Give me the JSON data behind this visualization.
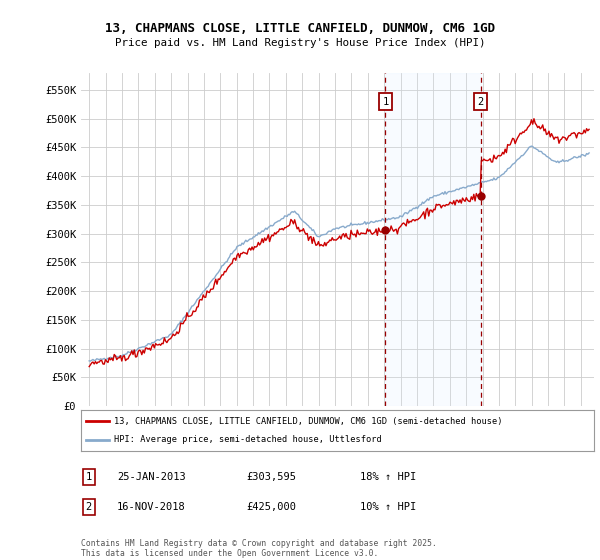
{
  "title1": "13, CHAPMANS CLOSE, LITTLE CANFIELD, DUNMOW, CM6 1GD",
  "title2": "Price paid vs. HM Land Registry's House Price Index (HPI)",
  "xlim_start": 1994.5,
  "xlim_end": 2025.8,
  "ylim_min": 0,
  "ylim_max": 580000,
  "purchase1_date": 2013.07,
  "purchase1_price": 303595,
  "purchase1_label": "1",
  "purchase2_date": 2018.88,
  "purchase2_price": 425000,
  "purchase2_label": "2",
  "legend_line1": "13, CHAPMANS CLOSE, LITTLE CANFIELD, DUNMOW, CM6 1GD (semi-detached house)",
  "legend_line2": "HPI: Average price, semi-detached house, Uttlesford",
  "footer": "Contains HM Land Registry data © Crown copyright and database right 2025.\nThis data is licensed under the Open Government Licence v3.0.",
  "line_color_red": "#cc0000",
  "line_color_blue": "#88aacc",
  "shade_color": "#ddeeff",
  "grid_color": "#cccccc",
  "background_color": "#ffffff",
  "purchase_marker_color": "#990000",
  "yticks": [
    0,
    50000,
    100000,
    150000,
    200000,
    250000,
    300000,
    350000,
    400000,
    450000,
    500000,
    550000
  ],
  "ytick_labels": [
    "£0",
    "£50K",
    "£100K",
    "£150K",
    "£200K",
    "£250K",
    "£300K",
    "£350K",
    "£400K",
    "£450K",
    "£500K",
    "£550K"
  ],
  "xticks": [
    1995,
    1996,
    1997,
    1998,
    1999,
    2000,
    2001,
    2002,
    2003,
    2004,
    2005,
    2006,
    2007,
    2008,
    2009,
    2010,
    2011,
    2012,
    2013,
    2014,
    2015,
    2016,
    2017,
    2018,
    2019,
    2020,
    2021,
    2022,
    2023,
    2024,
    2025
  ]
}
